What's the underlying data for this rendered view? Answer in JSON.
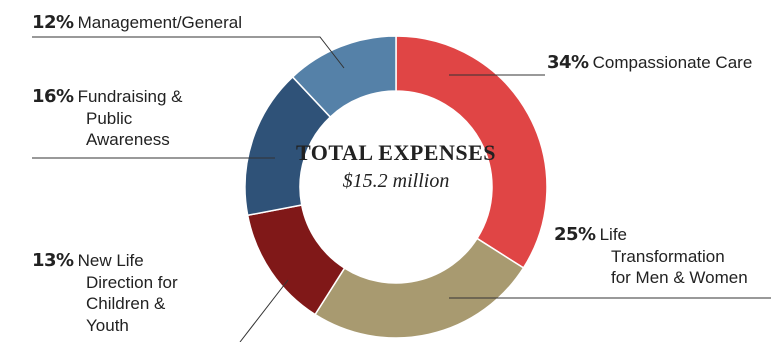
{
  "chart_data": {
    "type": "pie",
    "title": "TOTAL EXPENSES",
    "subtitle": "$15.2 million",
    "slices": [
      {
        "label": "Compassionate Care",
        "percent_label": "34%",
        "value": 34,
        "color": "#e04545",
        "lines": [
          "Compassionate Care"
        ]
      },
      {
        "label": "Life Transformation for Men & Women",
        "percent_label": "25%",
        "value": 25,
        "color": "#a89a70",
        "lines": [
          "Life",
          "Transformation",
          "for Men & Women"
        ]
      },
      {
        "label": "New Life Direction for Children & Youth",
        "percent_label": "13%",
        "value": 13,
        "color": "#801818",
        "lines": [
          "New Life",
          "Direction for",
          "Children &",
          "Youth"
        ]
      },
      {
        "label": "Fundraising & Public Awareness",
        "percent_label": "16%",
        "value": 16,
        "color": "#2f5278",
        "lines": [
          "Fundraising &",
          "Public",
          "Awareness"
        ]
      },
      {
        "label": "Management/General",
        "percent_label": "12%",
        "value": 12,
        "color": "#5581a8",
        "lines": [
          "Management/General"
        ]
      }
    ]
  }
}
